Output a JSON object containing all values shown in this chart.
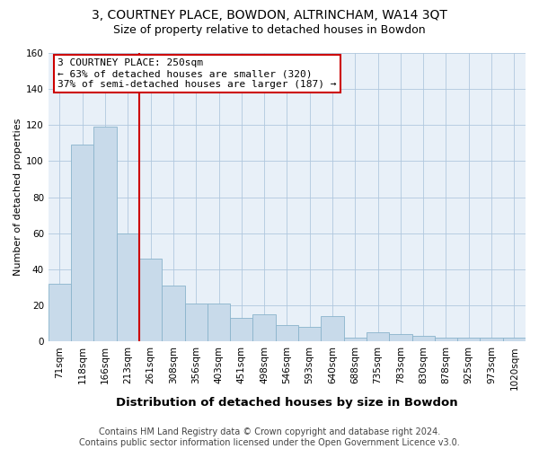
{
  "title": "3, COURTNEY PLACE, BOWDON, ALTRINCHAM, WA14 3QT",
  "subtitle": "Size of property relative to detached houses in Bowdon",
  "xlabel": "Distribution of detached houses by size in Bowdon",
  "ylabel": "Number of detached properties",
  "categories": [
    "71sqm",
    "118sqm",
    "166sqm",
    "213sqm",
    "261sqm",
    "308sqm",
    "356sqm",
    "403sqm",
    "451sqm",
    "498sqm",
    "546sqm",
    "593sqm",
    "640sqm",
    "688sqm",
    "735sqm",
    "783sqm",
    "830sqm",
    "878sqm",
    "925sqm",
    "973sqm",
    "1020sqm"
  ],
  "values": [
    32,
    109,
    119,
    60,
    46,
    31,
    21,
    21,
    13,
    15,
    9,
    8,
    14,
    2,
    5,
    4,
    3,
    2,
    2,
    2,
    2
  ],
  "bar_color": "#c8daea",
  "bar_edge_color": "#8ab4cc",
  "reference_line_color": "#cc0000",
  "annotation_box_edge_color": "#cc0000",
  "annotation_box_face_color": "#ffffff",
  "annotation_text_line1": "3 COURTNEY PLACE: 250sqm",
  "annotation_text_line2": "← 63% of detached houses are smaller (320)",
  "annotation_text_line3": "37% of semi-detached houses are larger (187) →",
  "ylim": [
    0,
    160
  ],
  "yticks": [
    0,
    20,
    40,
    60,
    80,
    100,
    120,
    140,
    160
  ],
  "background_color": "#e8f0f8",
  "footnote": "Contains HM Land Registry data © Crown copyright and database right 2024.\nContains public sector information licensed under the Open Government Licence v3.0.",
  "title_fontsize": 10,
  "subtitle_fontsize": 9,
  "xlabel_fontsize": 9.5,
  "ylabel_fontsize": 8,
  "tick_fontsize": 7.5,
  "footnote_fontsize": 7,
  "annotation_fontsize": 8
}
